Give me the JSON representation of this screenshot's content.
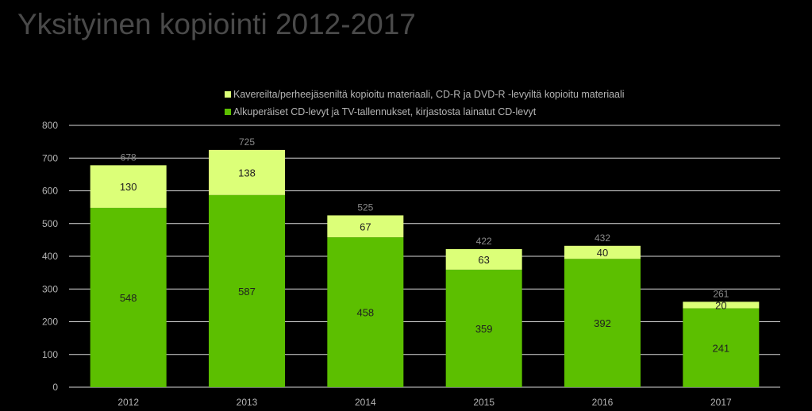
{
  "title": "Yksityinen kopiointi 2012-2017",
  "colors": {
    "background": "#000000",
    "title": "#4a4a4a",
    "text": "#b4b4b4",
    "gridline": "#d9d9d9",
    "series_bottom": "#5cbf00",
    "series_top": "#dcff78"
  },
  "legend": [
    {
      "label": "Kavereilta/perheejäseniltä kopioitu materiaali, CD-R ja DVD-R -levyiltä kopioitu materiaali",
      "color": "#dcff78"
    },
    {
      "label": "Alkuperäiset CD-levyt ja TV-tallennukset, kirjastosta lainatut CD-levyt",
      "color": "#5cbf00"
    }
  ],
  "chart_data": {
    "type": "bar",
    "stacked": true,
    "categories": [
      "2012",
      "2013",
      "2014",
      "2015",
      "2016",
      "2017"
    ],
    "series": [
      {
        "name": "Alkuperäiset CD-levyt ja TV-tallennukset, kirjastosta lainatut CD-levyt",
        "values": [
          548,
          587,
          458,
          359,
          392,
          241
        ],
        "color": "#5cbf00"
      },
      {
        "name": "Kavereilta/perheejäseniltä kopioitu materiaali, CD-R ja DVD-R -levyiltä kopioitu materiaali",
        "values": [
          130,
          138,
          67,
          63,
          40,
          20
        ],
        "color": "#dcff78"
      }
    ],
    "totals": [
      678,
      725,
      525,
      422,
      432,
      261
    ],
    "title": "Yksityinen kopiointi 2012-2017",
    "xlabel": "",
    "ylabel": "",
    "ylim": [
      0,
      800
    ],
    "yticks": [
      0,
      100,
      200,
      300,
      400,
      500,
      600,
      700,
      800
    ],
    "grid": true,
    "legend_position": "top"
  }
}
